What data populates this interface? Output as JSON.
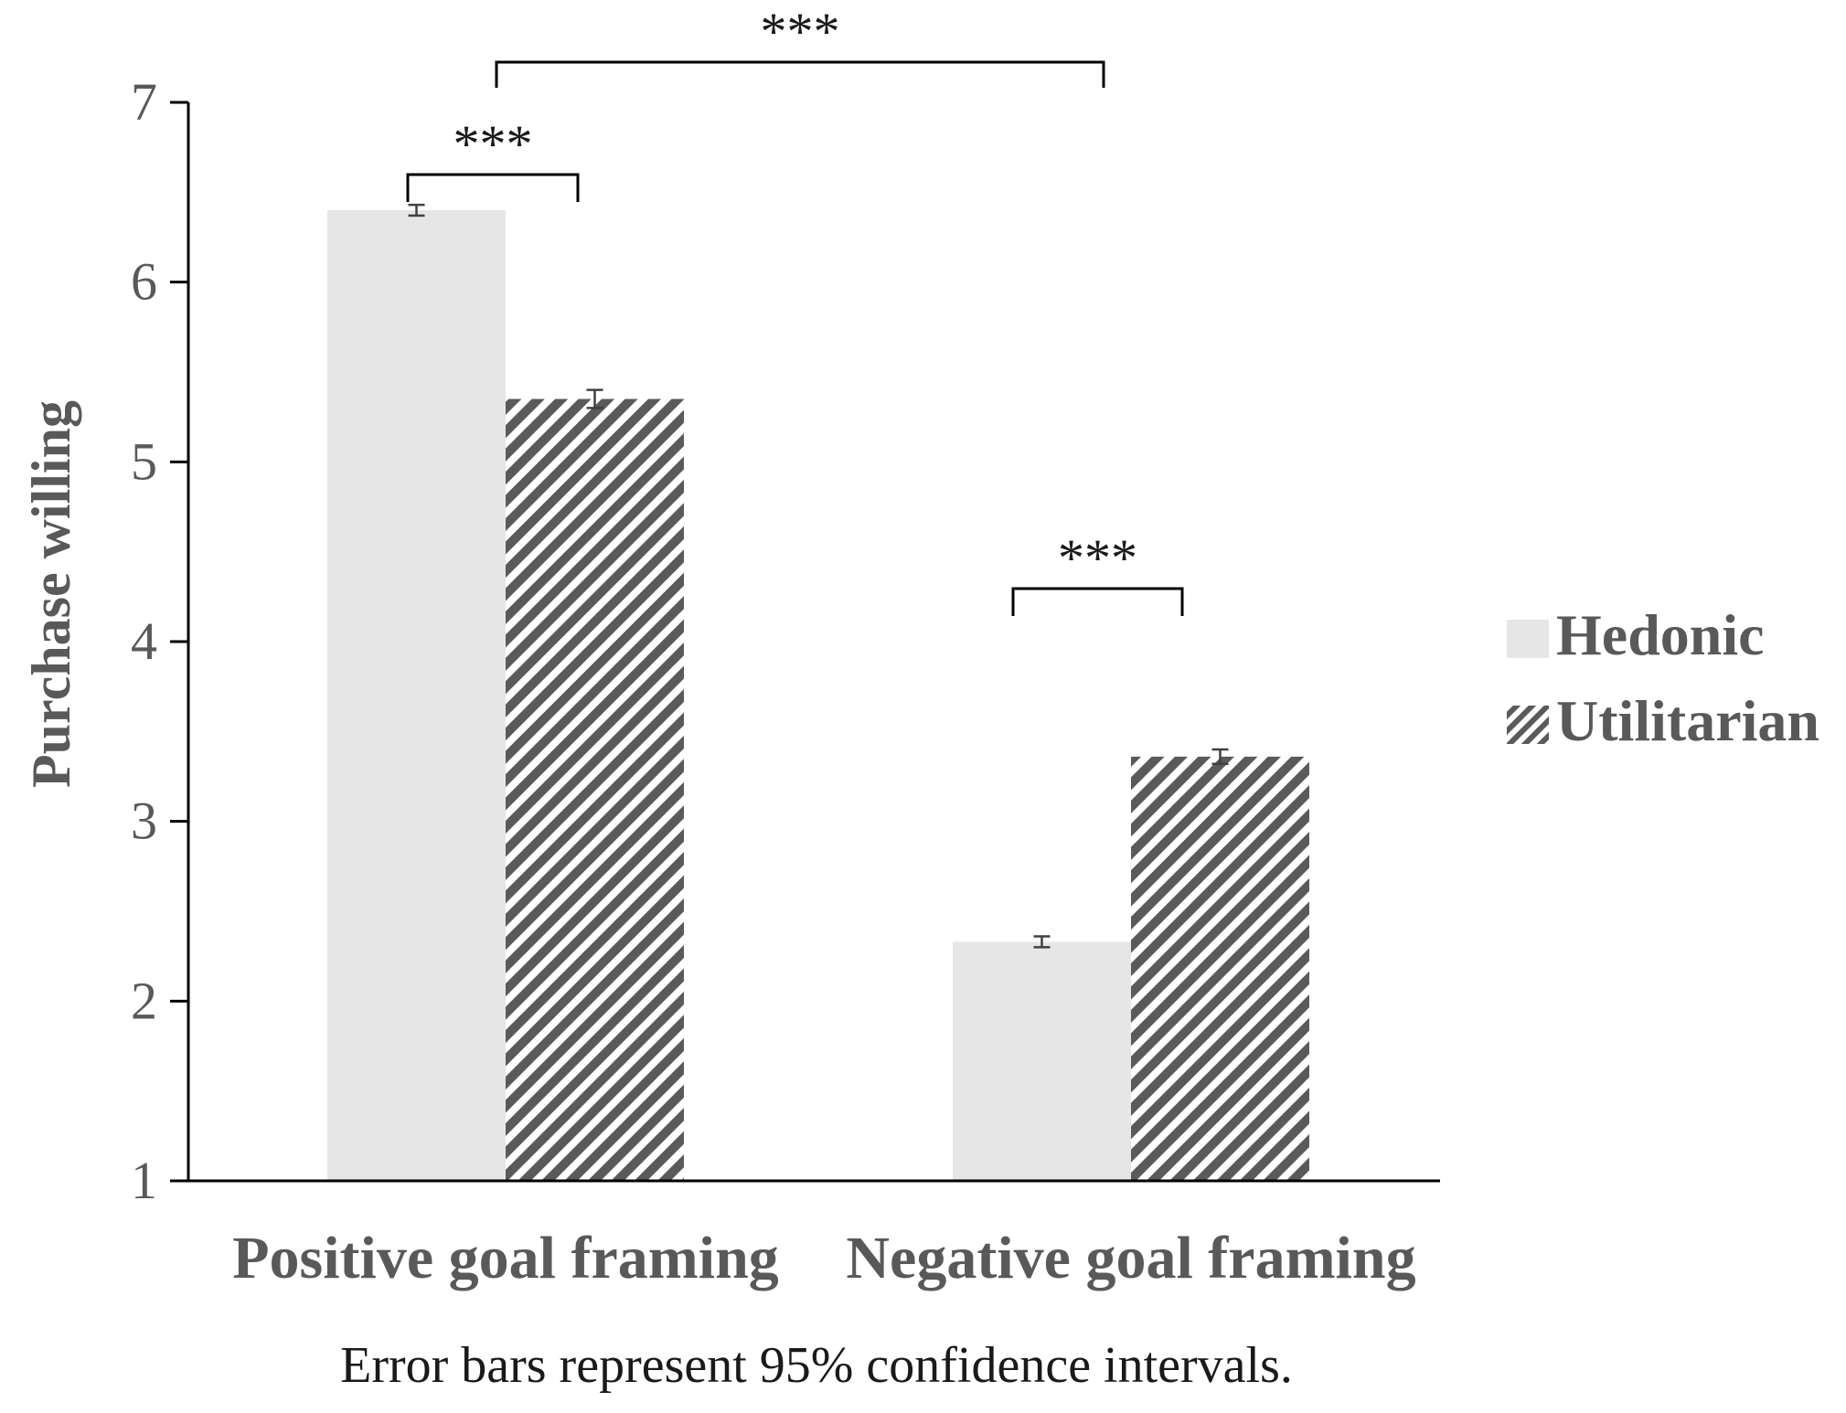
{
  "chart_data": {
    "type": "bar",
    "title": "",
    "xlabel": "",
    "ylabel": "Purchase willing",
    "ylim": [
      1,
      7
    ],
    "yticks": [
      1,
      2,
      3,
      4,
      5,
      6,
      7
    ],
    "categories": [
      "Positive goal framing",
      "Negative goal framing"
    ],
    "series": [
      {
        "name": "Hedonic",
        "values": [
          6.4,
          2.33
        ],
        "error": [
          0.03,
          0.03
        ],
        "fill": "#e6e6e6",
        "pattern": "solid"
      },
      {
        "name": "Utilitarian",
        "values": [
          5.35,
          3.36
        ],
        "error": [
          0.05,
          0.04
        ],
        "fill": "#5a5a5a",
        "pattern": "diagonal-hatch"
      }
    ],
    "significance": [
      {
        "label": "***",
        "between": [
          "Positive goal framing/Hedonic",
          "Positive goal framing/Utilitarian"
        ]
      },
      {
        "label": "***",
        "between": [
          "Negative goal framing/Hedonic",
          "Negative goal framing/Utilitarian"
        ]
      },
      {
        "label": "***",
        "between": [
          "Positive goal framing",
          "Negative goal framing"
        ]
      }
    ],
    "legend_position": "right",
    "grid": false,
    "caption": "Error bars represent 95% confidence intervals."
  },
  "colors": {
    "hedonic": "#e6e6e6",
    "utilitarian_stripe": "#5a5a5a",
    "axis": "#000000",
    "text": "#595959"
  }
}
